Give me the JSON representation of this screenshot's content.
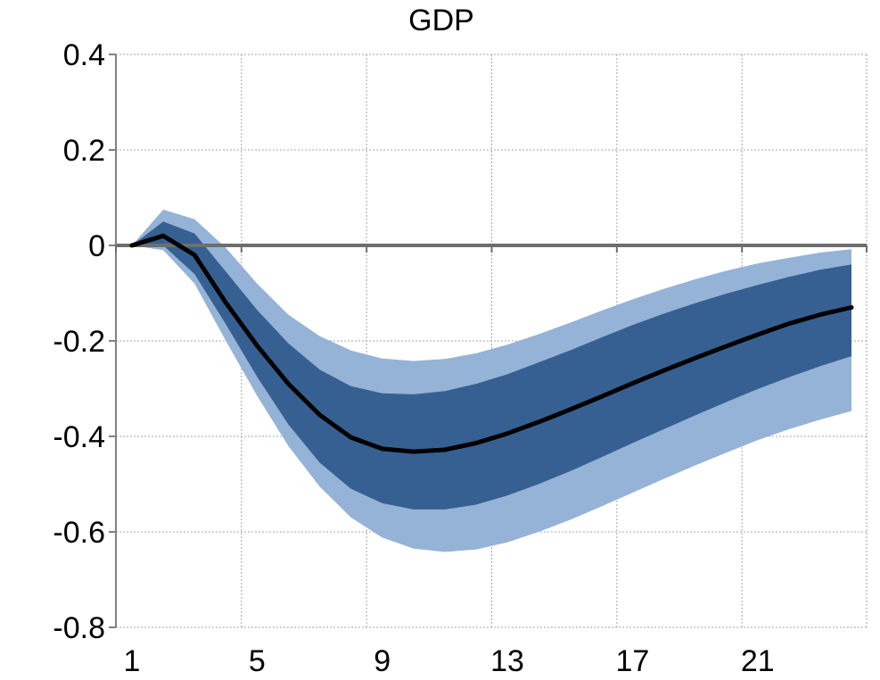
{
  "chart_data": {
    "type": "area",
    "title": "GDP",
    "xlabel": "",
    "ylabel": "",
    "x": [
      1,
      2,
      3,
      4,
      5,
      6,
      7,
      8,
      9,
      10,
      11,
      12,
      13,
      14,
      15,
      16,
      17,
      18,
      19,
      20,
      21,
      22,
      23,
      24
    ],
    "xlim": [
      0.5,
      24.5
    ],
    "ylim": [
      -0.8,
      0.4
    ],
    "x_ticks": [
      1,
      5,
      9,
      13,
      17,
      21
    ],
    "x_tick_labels": [
      "1",
      "5",
      "9",
      "13",
      "17",
      "21"
    ],
    "y_ticks": [
      0.4,
      0.2,
      0,
      -0.2,
      -0.4,
      -0.6,
      -0.8
    ],
    "y_tick_labels": [
      "0.4",
      "0.2",
      "0",
      "-0.2",
      "-0.4",
      "-0.6",
      "-0.8"
    ],
    "grid": true,
    "legend": "none",
    "series": [
      {
        "role": "outer-band",
        "color": "#95b3d7",
        "upper": [
          0,
          0.075,
          0.055,
          -0.005,
          -0.08,
          -0.145,
          -0.19,
          -0.22,
          -0.237,
          -0.242,
          -0.238,
          -0.226,
          -0.208,
          -0.186,
          -0.162,
          -0.137,
          -0.113,
          -0.091,
          -0.071,
          -0.053,
          -0.038,
          -0.026,
          -0.015,
          -0.008
        ],
        "lower": [
          0,
          -0.01,
          -0.08,
          -0.2,
          -0.315,
          -0.42,
          -0.505,
          -0.57,
          -0.612,
          -0.635,
          -0.642,
          -0.637,
          -0.622,
          -0.6,
          -0.575,
          -0.547,
          -0.518,
          -0.489,
          -0.461,
          -0.434,
          -0.408,
          -0.385,
          -0.365,
          -0.347
        ]
      },
      {
        "role": "inner-band",
        "color": "#366092",
        "upper": [
          0,
          0.05,
          0.025,
          -0.055,
          -0.135,
          -0.205,
          -0.26,
          -0.295,
          -0.31,
          -0.312,
          -0.305,
          -0.29,
          -0.27,
          -0.245,
          -0.22,
          -0.193,
          -0.167,
          -0.143,
          -0.121,
          -0.101,
          -0.083,
          -0.066,
          -0.051,
          -0.04
        ],
        "lower": [
          0,
          0.0,
          -0.06,
          -0.165,
          -0.275,
          -0.375,
          -0.455,
          -0.51,
          -0.54,
          -0.553,
          -0.553,
          -0.543,
          -0.524,
          -0.5,
          -0.473,
          -0.444,
          -0.414,
          -0.385,
          -0.356,
          -0.328,
          -0.301,
          -0.276,
          -0.253,
          -0.232
        ]
      },
      {
        "role": "median-line",
        "color": "#000000",
        "values": [
          0,
          0.02,
          -0.02,
          -0.12,
          -0.21,
          -0.29,
          -0.355,
          -0.402,
          -0.426,
          -0.432,
          -0.428,
          -0.414,
          -0.394,
          -0.37,
          -0.344,
          -0.317,
          -0.289,
          -0.262,
          -0.236,
          -0.211,
          -0.187,
          -0.164,
          -0.145,
          -0.13
        ]
      }
    ]
  }
}
